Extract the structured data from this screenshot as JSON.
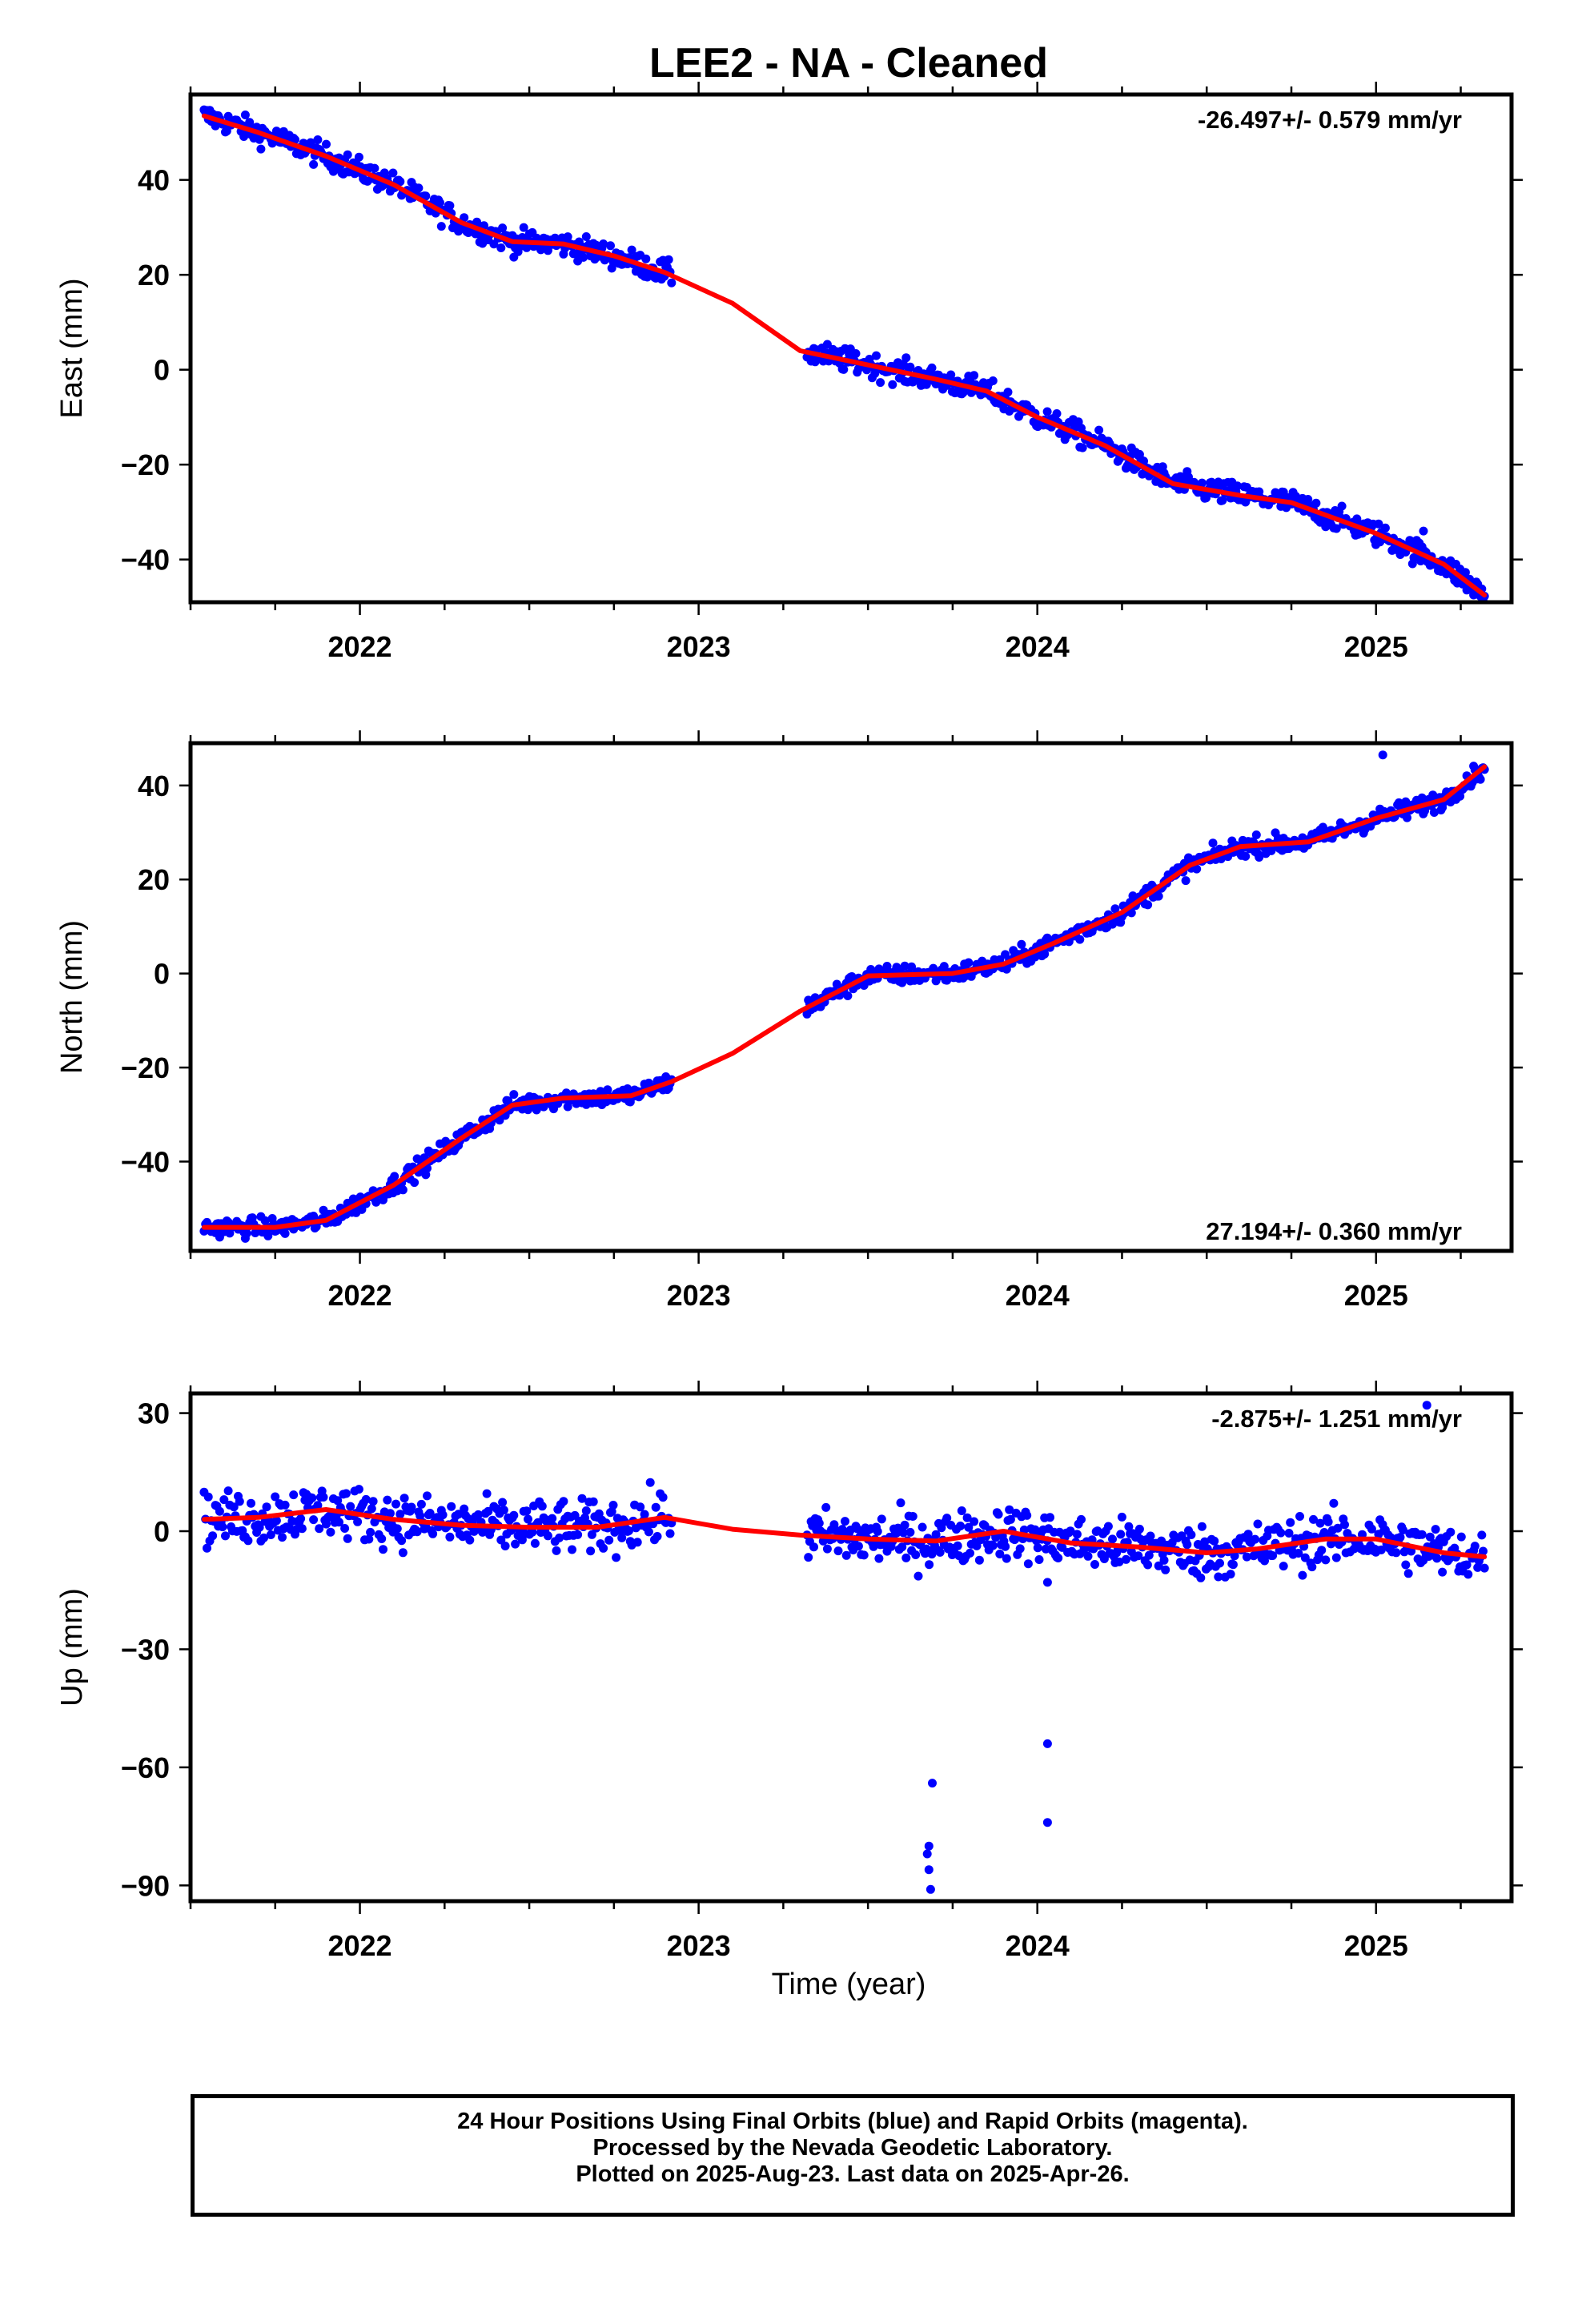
{
  "title": "LEE2  - NA - Cleaned",
  "xlabel": "Time (year)",
  "footer": {
    "line1": "24 Hour Positions Using Final Orbits (blue) and Rapid Orbits (magenta).",
    "line2": "Processed by the Nevada Geodetic Laboratory.",
    "line3": "Plotted on 2025-Aug-23. Last data on 2025-Apr-26."
  },
  "colors": {
    "points": "#0000ff",
    "fit": "#ff0000",
    "axes": "#000000"
  },
  "chart_data": [
    {
      "type": "scatter",
      "ylabel": "East (mm)",
      "rate_label": "-26.497+/- 0.579 mm/yr",
      "xlim": [
        2021.5,
        2025.4
      ],
      "ylim": [
        -49,
        58
      ],
      "yticks": [
        40,
        20,
        0,
        -20,
        -40
      ],
      "xticks": [
        2022,
        2023,
        2024,
        2025
      ],
      "grid": false,
      "fit_series": {
        "name": "fit",
        "x": [
          2021.54,
          2021.7,
          2021.9,
          2022.1,
          2022.3,
          2022.45,
          2022.6,
          2022.75,
          2022.9,
          2023.1,
          2023.3,
          2023.5,
          2023.7,
          2023.85,
          2024.0,
          2024.2,
          2024.4,
          2024.6,
          2024.75,
          2025.0,
          2025.2,
          2025.32
        ],
        "y": [
          53.5,
          50,
          45,
          39,
          31,
          27,
          26.5,
          24,
          20.5,
          14,
          4,
          1,
          -2,
          -4.5,
          -10,
          -16,
          -24,
          -26.5,
          -28,
          -34.5,
          -41,
          -47.5
        ]
      },
      "points_series": {
        "name": "daily positions",
        "segments": [
          {
            "x0": 2021.54,
            "x1": 2022.92,
            "n": 330,
            "spread": 3
          },
          {
            "x0": 2023.32,
            "x1": 2025.32,
            "n": 500,
            "spread": 3
          }
        ],
        "outliers": [
          {
            "x": 2025.14,
            "y": -34
          }
        ]
      }
    },
    {
      "type": "scatter",
      "ylabel": "North (mm)",
      "rate_label": "27.194+/- 0.360 mm/yr",
      "xlim": [
        2021.5,
        2025.4
      ],
      "ylim": [
        -59,
        49
      ],
      "yticks": [
        40,
        20,
        0,
        -20,
        -40
      ],
      "xticks": [
        2022,
        2023,
        2024,
        2025
      ],
      "grid": false,
      "fit_series": {
        "name": "fit",
        "x": [
          2021.54,
          2021.75,
          2021.9,
          2022.1,
          2022.3,
          2022.45,
          2022.6,
          2022.8,
          2022.92,
          2023.1,
          2023.3,
          2023.5,
          2023.75,
          2023.9,
          2024.05,
          2024.25,
          2024.45,
          2024.6,
          2024.8,
          2025.0,
          2025.2,
          2025.32
        ],
        "y": [
          -54,
          -54,
          -52.5,
          -45,
          -35,
          -28,
          -26.5,
          -26,
          -23,
          -17,
          -8,
          -0.5,
          0,
          2,
          6.5,
          13,
          23,
          27,
          28,
          33,
          37,
          44
        ]
      },
      "points_series": {
        "name": "daily positions",
        "segments": [
          {
            "x0": 2021.54,
            "x1": 2022.92,
            "n": 330,
            "spread": 2.4
          },
          {
            "x0": 2023.32,
            "x1": 2025.32,
            "n": 500,
            "spread": 2.4
          }
        ],
        "outliers": [
          {
            "x": 2025.02,
            "y": 46.5
          }
        ]
      }
    },
    {
      "type": "scatter",
      "ylabel": "Up (mm)",
      "rate_label": "-2.875+/- 1.251 mm/yr",
      "xlim": [
        2021.5,
        2025.4
      ],
      "ylim": [
        -94,
        35
      ],
      "yticks": [
        30,
        0,
        -30,
        -60,
        -90
      ],
      "xticks": [
        2022,
        2023,
        2024,
        2025
      ],
      "grid": false,
      "fit_series": {
        "name": "fit",
        "x": [
          2021.54,
          2021.7,
          2021.9,
          2022.1,
          2022.3,
          2022.5,
          2022.7,
          2022.9,
          2023.1,
          2023.3,
          2023.5,
          2023.7,
          2023.9,
          2024.1,
          2024.3,
          2024.5,
          2024.65,
          2024.85,
          2025.0,
          2025.2,
          2025.32
        ],
        "y": [
          3,
          3.5,
          5.5,
          3,
          1.5,
          1,
          1,
          3.5,
          0.5,
          -1,
          -2,
          -2.5,
          0,
          -3,
          -4,
          -5.5,
          -4.5,
          -2,
          -2,
          -5.5,
          -6.5
        ]
      },
      "points_series": {
        "name": "daily positions",
        "segments": [
          {
            "x0": 2021.54,
            "x1": 2022.92,
            "n": 330,
            "spread": 8
          },
          {
            "x0": 2023.32,
            "x1": 2025.32,
            "n": 500,
            "spread": 8
          }
        ],
        "outliers": [
          {
            "x": 2023.69,
            "y": -64
          },
          {
            "x": 2023.68,
            "y": -80
          },
          {
            "x": 2023.675,
            "y": -82
          },
          {
            "x": 2023.68,
            "y": -86
          },
          {
            "x": 2023.685,
            "y": -91
          },
          {
            "x": 2024.03,
            "y": -54
          },
          {
            "x": 2024.03,
            "y": -74
          },
          {
            "x": 2024.03,
            "y": -13
          },
          {
            "x": 2025.15,
            "y": 32
          }
        ]
      }
    }
  ]
}
